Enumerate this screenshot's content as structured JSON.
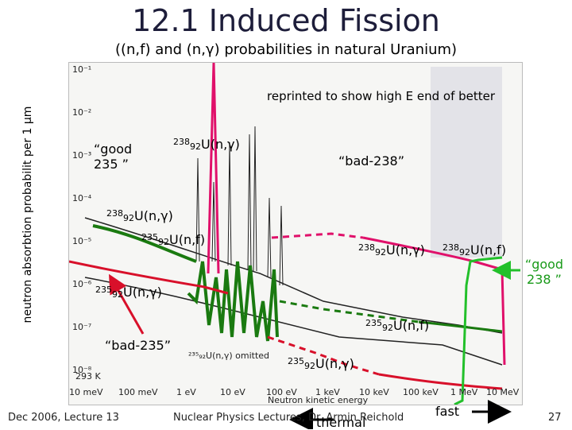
{
  "slide": {
    "title": "12.1 Induced Fission",
    "subtitle": "((n,f) and (n,γ) probabilities in natural Uranium)",
    "y_axis_label": "neutron absorbtion probabilit per 1 μm",
    "reprint_note": "reprinted to show high E end of better",
    "footer_left": "Dec 2006, Lecture 13",
    "footer_center": "Nuclear Physics Lectures, Dr. Armin Reichold",
    "thermal_label": "thermal",
    "fast_label": "fast",
    "page_number": "27"
  },
  "annotations": {
    "good235": "“good 235 ”",
    "good238": "“good 238 ”",
    "bad238": "“bad-238”",
    "bad235": "“bad-235”",
    "u238ng_top": {
      "mass": "238",
      "z": "92",
      "reaction": "U(n,γ)"
    },
    "u238ng_left": {
      "mass": "238",
      "z": "92",
      "reaction": "U(n,γ)"
    },
    "u235nf_mid": {
      "mass": "235",
      "z": "92",
      "reaction": "U(n,f)"
    },
    "u235ng_left": {
      "mass": "235",
      "z": "92",
      "reaction": "U(n,γ)"
    },
    "u238ng_right": {
      "mass": "238",
      "z": "92",
      "reaction": "U(n,γ)"
    },
    "u238nf_right": {
      "mass": "238",
      "z": "92",
      "reaction": "U(n,f)"
    },
    "u235nf_low": {
      "mass": "235",
      "z": "92",
      "reaction": "U(n,f)"
    },
    "u235ng_low": {
      "mass": "235",
      "z": "92",
      "reaction": "U(n,γ)"
    }
  },
  "scan": {
    "y_ticks": [
      "10⁻¹",
      "10⁻²",
      "10⁻³",
      "10⁻⁴",
      "10⁻⁵",
      "10⁻⁶",
      "10⁻⁷",
      "10⁻⁸"
    ],
    "x_ticks": [
      "10 meV",
      "100 meV",
      "1 eV",
      "10 eV",
      "100 eV",
      "1 keV",
      "10 keV",
      "100 keV",
      "1 MeV",
      "10 MeV"
    ],
    "x_axis_title": "Neutron kinetic energy",
    "temp_label": "293 K",
    "omitted_note": "²³⁵₉₂U(n,γ) omitted"
  },
  "colors": {
    "red": "#d8102a",
    "green": "#1a7a10",
    "bright_green": "#22c02a",
    "magenta": "#e0106a"
  }
}
